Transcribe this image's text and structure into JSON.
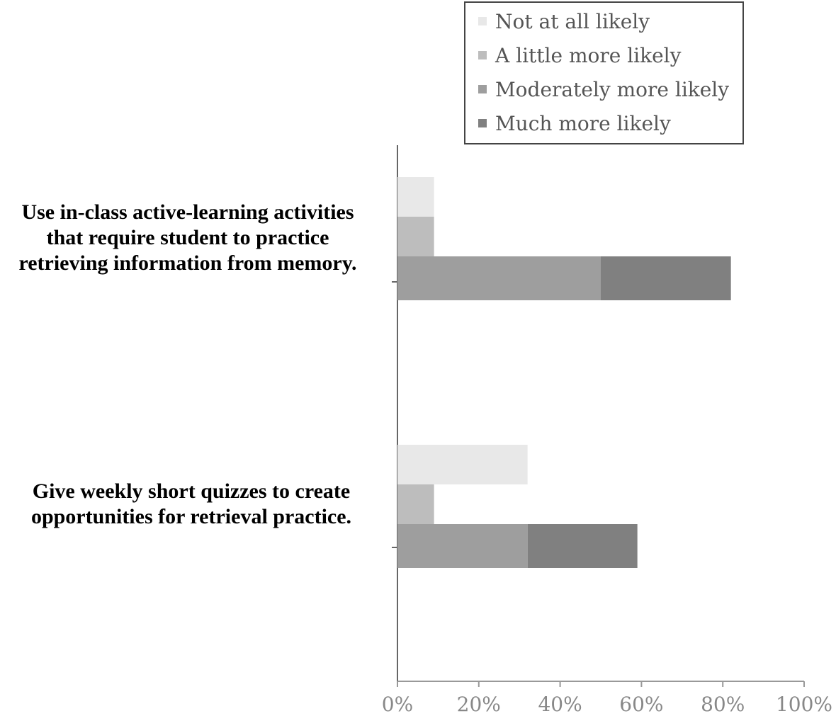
{
  "chart_data": {
    "type": "bar",
    "orientation": "horizontal",
    "categories": [
      "Use in-class active-learning activities that require student to practice retrieving information from memory.",
      "Give weekly short quizzes to create opportunities for retrieval practice."
    ],
    "category_lines": [
      [
        "Use in-class active-learning activities",
        "that require student to practice",
        "retrieving information from memory."
      ],
      [
        "Give weekly short quizzes to create",
        "opportunities for retrieval practice."
      ]
    ],
    "series": [
      {
        "name": "Not at all likely",
        "values": [
          9,
          32
        ],
        "color": "#e8e8e8"
      },
      {
        "name": "A little more likely",
        "values": [
          9,
          9
        ],
        "color": "#bdbdbd"
      },
      {
        "name": "Moderately more likely",
        "values": [
          50,
          32
        ],
        "color": "#9e9e9e"
      },
      {
        "name": "Much more likely",
        "values": [
          32,
          27
        ],
        "color": "#808080"
      }
    ],
    "bar_groups": [
      {
        "bars": [
          [
            "Not at all likely"
          ],
          [
            "A little more likely"
          ],
          [
            "Moderately more likely",
            "Much more likely"
          ]
        ]
      }
    ],
    "xlim": [
      0,
      100
    ],
    "x_ticks": [
      "0%",
      "20%",
      "40%",
      "60%",
      "80%",
      "100%"
    ],
    "grid": false,
    "legend_position": "top-right",
    "title": "",
    "xlabel": "",
    "ylabel": ""
  }
}
